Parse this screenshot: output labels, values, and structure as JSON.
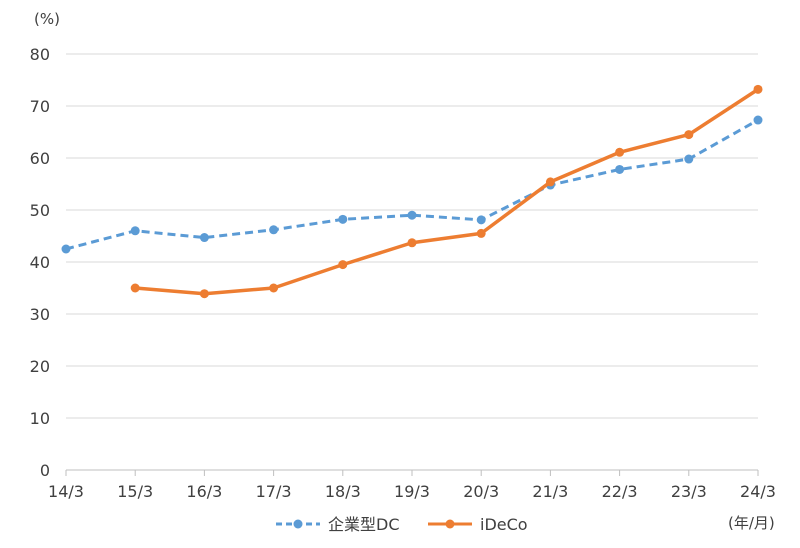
{
  "chart_data": {
    "type": "line",
    "y_unit_label": "(%)",
    "x_unit_label": "(年/月)",
    "categories": [
      "14/3",
      "15/3",
      "16/3",
      "17/3",
      "18/3",
      "19/3",
      "20/3",
      "21/3",
      "22/3",
      "23/3",
      "24/3"
    ],
    "yticks": [
      "0",
      "10",
      "20",
      "30",
      "40",
      "50",
      "60",
      "70",
      "80"
    ],
    "ylim": [
      0,
      80
    ],
    "grid": true,
    "legend_position": "bottom",
    "series": [
      {
        "name": "企業型DC",
        "color": "#5B9BD5",
        "dash": true,
        "values": [
          42.5,
          46.0,
          44.7,
          46.2,
          48.2,
          49.0,
          48.1,
          54.8,
          57.8,
          59.8,
          67.3
        ]
      },
      {
        "name": "iDeCo",
        "color": "#ED7D31",
        "dash": false,
        "values": [
          null,
          35.0,
          33.9,
          35.0,
          39.5,
          43.7,
          45.5,
          55.4,
          61.1,
          64.5,
          73.2
        ]
      }
    ]
  }
}
